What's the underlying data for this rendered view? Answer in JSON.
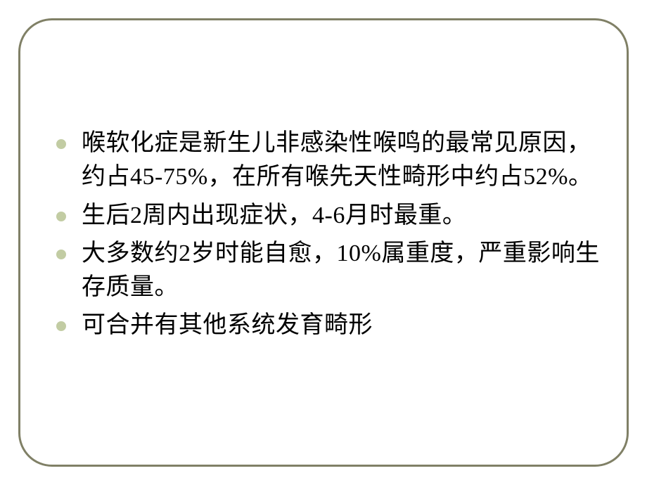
{
  "slide": {
    "frame": {
      "border_color": "#808066",
      "border_width": 3,
      "border_radius": 48,
      "background_color": "#ffffff"
    },
    "bullet": {
      "marker_color": "#c2cca3",
      "marker_size": 14
    },
    "typography": {
      "font_family": "SimSun",
      "font_size": 34,
      "text_color": "#000000",
      "line_height": 1.42
    },
    "items": [
      {
        "text": "喉软化症是新生儿非感染性喉鸣的最常见原因，约占45-75%，在所有喉先天性畸形中约占52%。"
      },
      {
        "text": "生后2周内出现症状，4-6月时最重。"
      },
      {
        "text": "大多数约2岁时能自愈，10%属重度，严重影响生存质量。"
      },
      {
        "text": "可合并有其他系统发育畸形"
      }
    ]
  }
}
